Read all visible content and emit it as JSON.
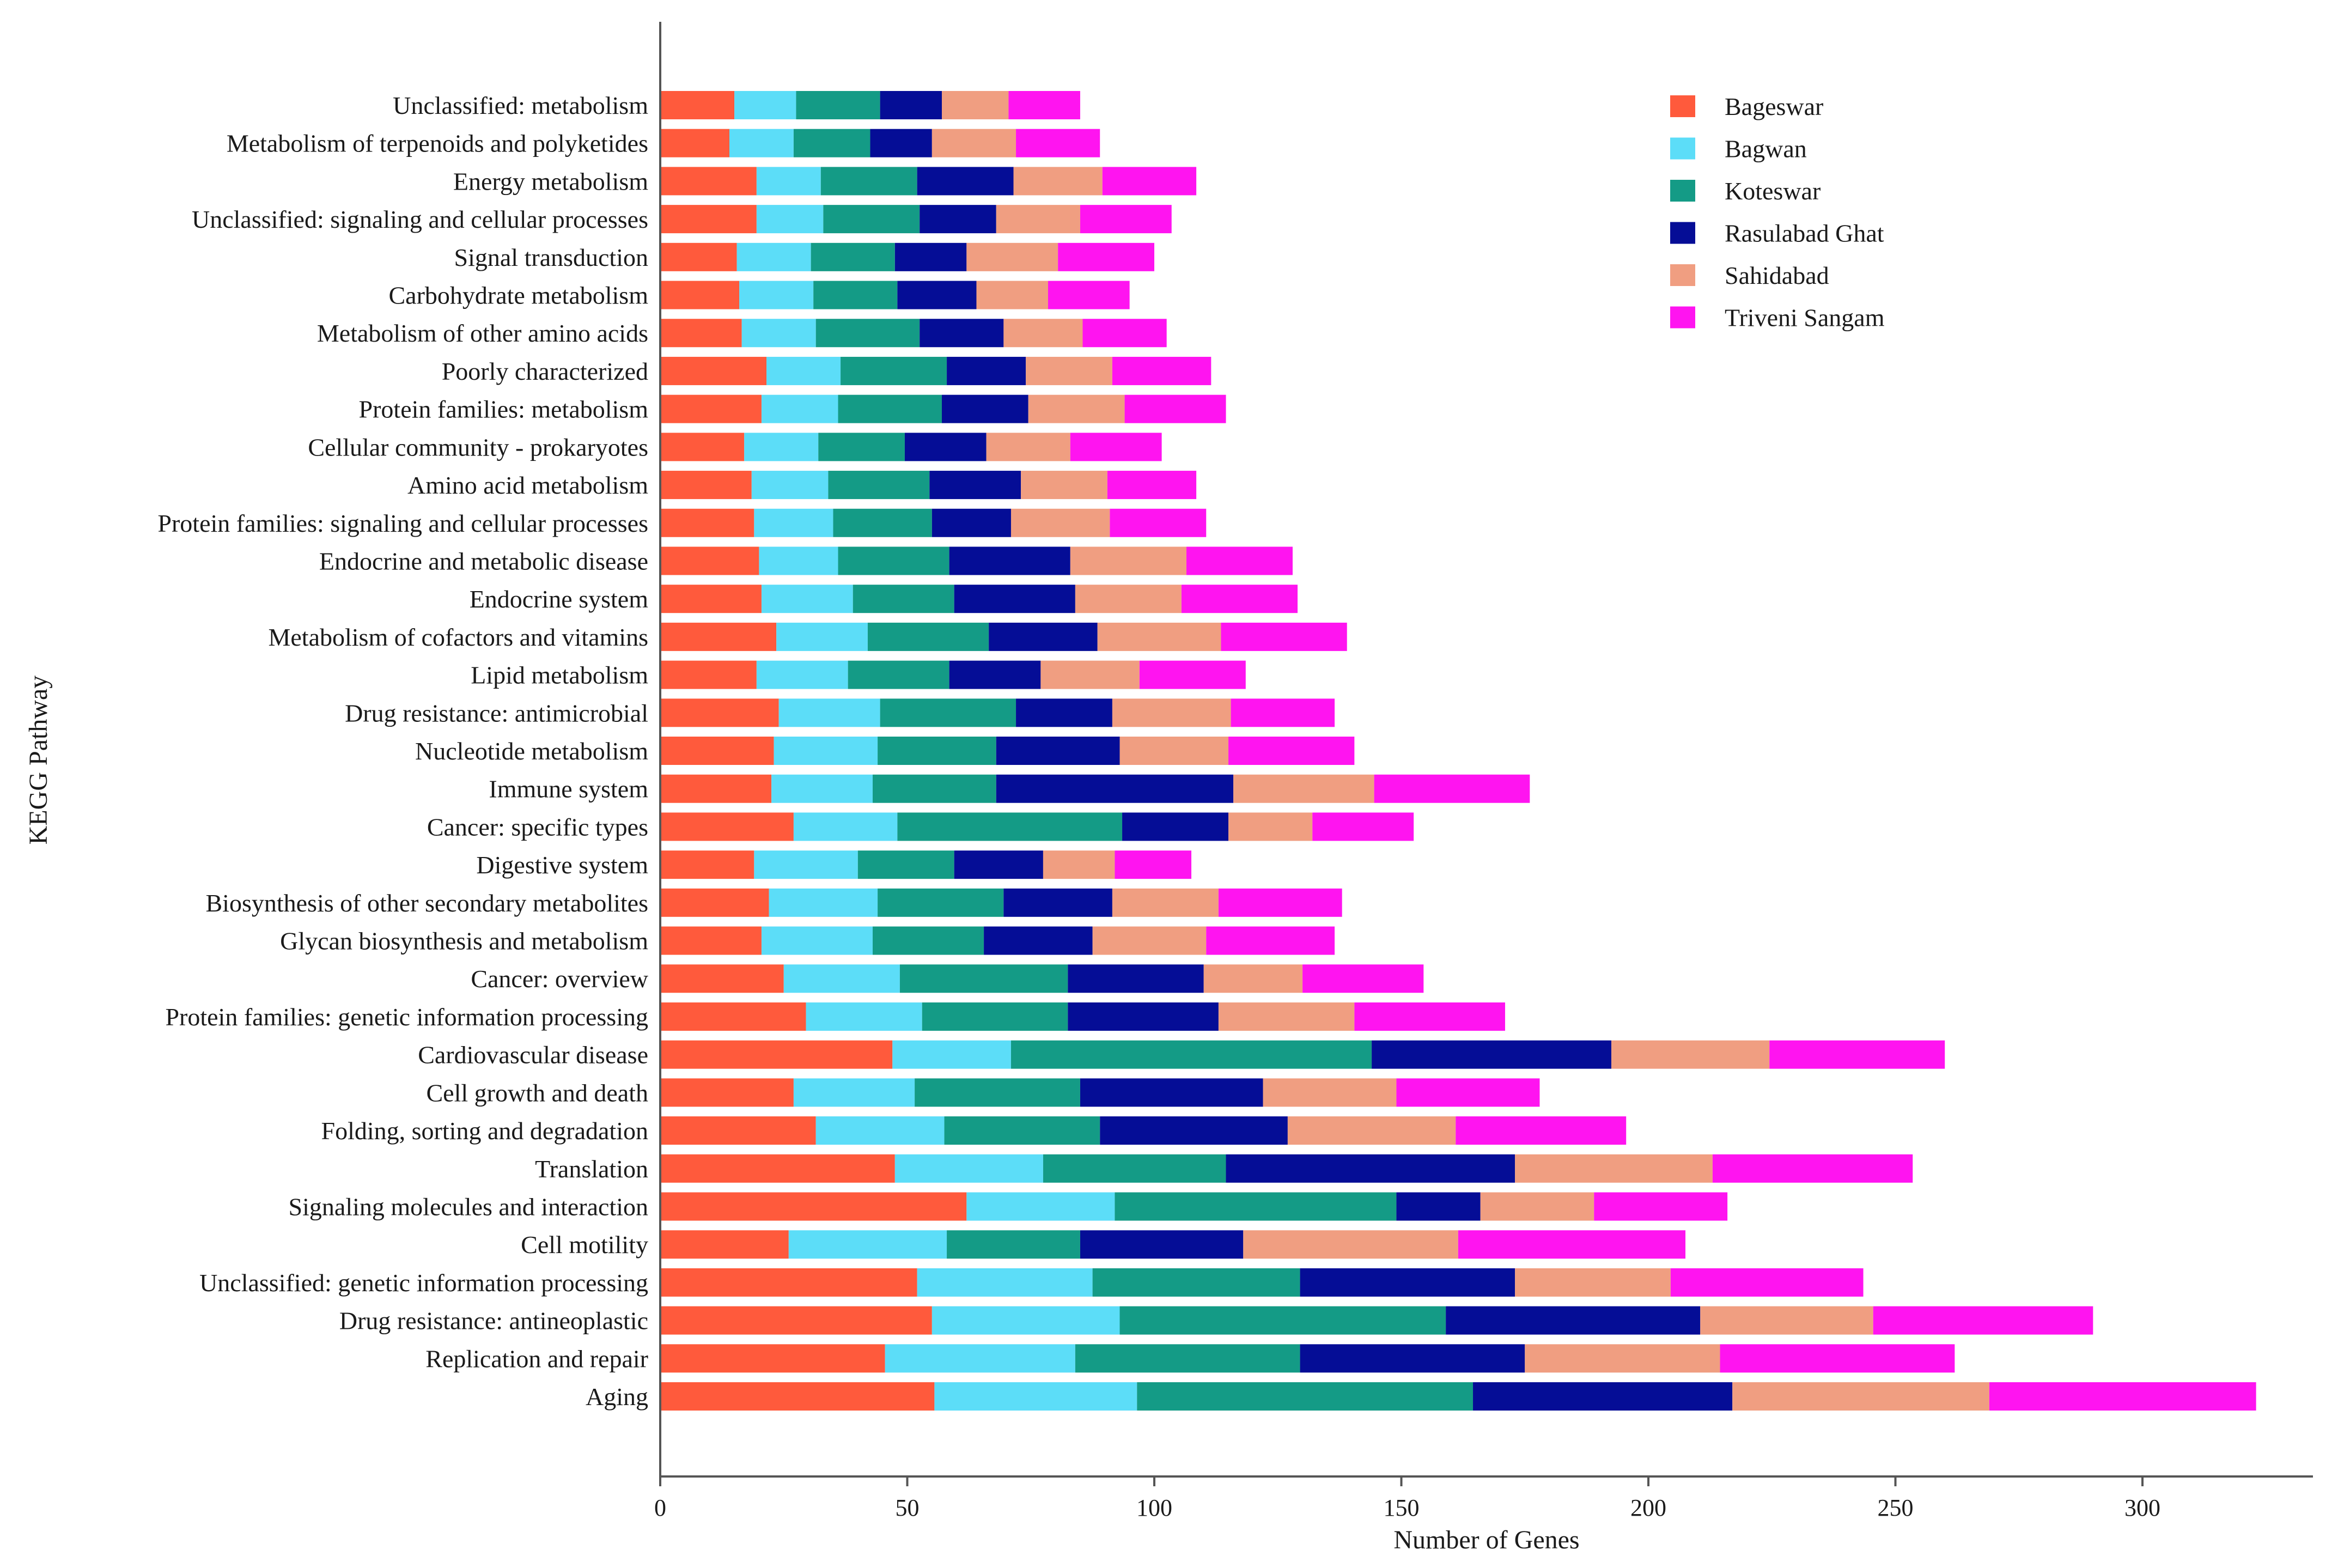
{
  "chart_data": {
    "type": "bar",
    "orientation": "horizontal",
    "stacked": true,
    "xlabel": "Number of Genes",
    "ylabel": "KEGG Pathway",
    "xlim": [
      0,
      335
    ],
    "xticks": [
      0,
      50,
      100,
      150,
      200,
      250,
      300
    ],
    "grid": false,
    "legend_position": "top-right",
    "categories": [
      "Unclassified: metabolism",
      "Metabolism of terpenoids and polyketides",
      "Energy metabolism",
      "Unclassified: signaling and cellular processes",
      "Signal transduction",
      "Carbohydrate metabolism",
      "Metabolism of other amino acids",
      "Poorly characterized",
      "Protein families: metabolism",
      "Cellular community - prokaryotes",
      "Amino acid metabolism",
      "Protein families: signaling and cellular processes",
      "Endocrine and metabolic disease",
      "Endocrine system",
      "Metabolism of cofactors and vitamins",
      "Lipid metabolism",
      "Drug resistance: antimicrobial",
      "Nucleotide metabolism",
      "Immune system",
      "Cancer: specific types",
      "Digestive system",
      "Biosynthesis of other secondary metabolites",
      "Glycan biosynthesis and metabolism",
      "Cancer: overview",
      "Protein families: genetic information processing",
      "Cardiovascular disease",
      "Cell growth and death",
      "Folding, sorting and degradation",
      "Translation",
      "Signaling molecules and interaction",
      "Cell motility",
      "Unclassified: genetic information processing",
      "Drug resistance: antineoplastic",
      "Replication and repair",
      "Aging"
    ],
    "series": [
      {
        "name": "Bageswar",
        "color": "#FF5A3C",
        "values": [
          15,
          14,
          19.5,
          19.5,
          15.5,
          16,
          16.5,
          21.5,
          20.5,
          17,
          18.5,
          19,
          20,
          20.5,
          23.5,
          19.5,
          24,
          23,
          22.5,
          27,
          19,
          22,
          20.5,
          25,
          29.5,
          47,
          27,
          31.5,
          47.5,
          62,
          26,
          52,
          55,
          45.5,
          55.5
        ]
      },
      {
        "name": "Bagwan",
        "color": "#5CDDF8",
        "values": [
          12.5,
          13,
          13,
          13.5,
          15,
          15,
          15,
          15,
          15.5,
          15,
          15.5,
          16,
          16,
          18.5,
          18.5,
          18.5,
          20.5,
          21,
          20.5,
          21,
          21,
          22,
          22.5,
          23.5,
          23.5,
          24,
          24.5,
          26,
          30,
          30,
          32,
          35.5,
          38,
          38.5,
          41
        ]
      },
      {
        "name": "Koteswar",
        "color": "#149B86",
        "values": [
          17,
          15.5,
          19.5,
          19.5,
          17,
          17,
          21,
          21.5,
          21,
          17.5,
          20.5,
          20,
          22.5,
          20.5,
          24.5,
          20.5,
          27.5,
          24,
          25,
          45.5,
          19.5,
          25.5,
          22.5,
          34,
          29.5,
          73,
          33.5,
          31.5,
          37,
          57,
          27,
          42,
          66,
          45.5,
          68
        ]
      },
      {
        "name": "Rasulabad Ghat",
        "color": "#050D96",
        "values": [
          12.5,
          12.5,
          19.5,
          15.5,
          14.5,
          16,
          17,
          16,
          17.5,
          16.5,
          18.5,
          16,
          24.5,
          24.5,
          22,
          18.5,
          19.5,
          25,
          48,
          21.5,
          18,
          22,
          22,
          27.5,
          30.5,
          48.5,
          37,
          38,
          58.5,
          17,
          33,
          43.5,
          51.5,
          45.5,
          52.5
        ]
      },
      {
        "name": "Sahidabad",
        "color": "#F09E81",
        "values": [
          13.5,
          17,
          18,
          17,
          18.5,
          14.5,
          16,
          17.5,
          19.5,
          17,
          17.5,
          20,
          23.5,
          21.5,
          25,
          20,
          24,
          22,
          28.5,
          17,
          14.5,
          21.5,
          23,
          20,
          27.5,
          32,
          27,
          34,
          40,
          23,
          43.5,
          31.5,
          35,
          39.5,
          52
        ]
      },
      {
        "name": "Triveni Sangam",
        "color": "#FF14F0",
        "values": [
          14.5,
          17,
          19,
          18.5,
          19.5,
          16.5,
          17,
          20,
          20.5,
          18.5,
          18,
          19.5,
          21.5,
          23.5,
          25.5,
          21.5,
          21,
          25.5,
          31.5,
          20.5,
          15.5,
          25,
          26,
          24.5,
          30.5,
          35.5,
          29,
          34.5,
          40.5,
          27,
          46,
          39,
          44.5,
          47.5,
          54
        ]
      }
    ]
  }
}
